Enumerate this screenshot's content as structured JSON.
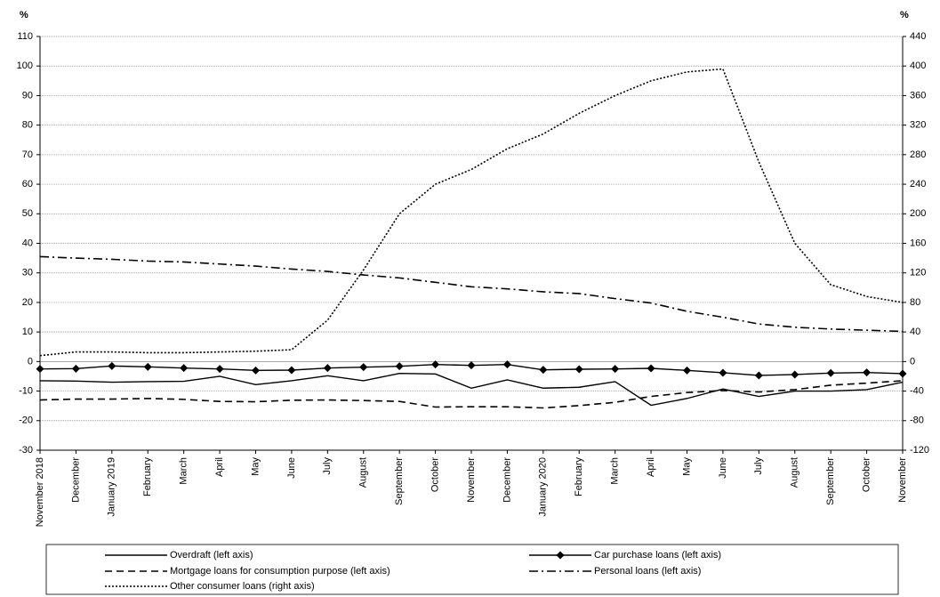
{
  "chart_data": {
    "type": "line",
    "y_label": "%",
    "y2_label": "%",
    "categories": [
      "November 2018",
      "December",
      "January 2019",
      "February",
      "March",
      "April",
      "May",
      "June",
      "July",
      "August",
      "September",
      "October",
      "November",
      "December",
      "January 2020",
      "February",
      "March",
      "April",
      "May",
      "June",
      "July",
      "August",
      "September",
      "October",
      "November"
    ],
    "ylim": [
      -30,
      110
    ],
    "yticks": [
      -30,
      -20,
      -10,
      0,
      10,
      20,
      30,
      40,
      50,
      60,
      70,
      80,
      90,
      100,
      110
    ],
    "y2lim": [
      -120,
      440
    ],
    "y2ticks": [
      -120,
      -80,
      -40,
      0,
      40,
      80,
      120,
      160,
      200,
      240,
      280,
      320,
      360,
      400,
      440
    ],
    "grid": true,
    "legend": "bottom",
    "series": [
      {
        "name": "Overdraft (left axis)",
        "color": "#000000",
        "style": "solid",
        "values": [
          -6.5,
          -6.6,
          -7,
          -6.8,
          -6.7,
          -5,
          -7.8,
          -6.5,
          -4.8,
          -6.5,
          -4,
          -4.2,
          -9,
          -6.2,
          -9,
          -8.7,
          -6.8,
          -14.8,
          -12.5,
          -9.3,
          -11.8,
          -10,
          -10,
          -9.5,
          -7
        ]
      },
      {
        "name": "Car purchase loans (left axis)",
        "color": "#000000",
        "style": "solid",
        "marker": "diamond",
        "values": [
          -2.5,
          -2.4,
          -1.5,
          -1.8,
          -2.2,
          -2.5,
          -3,
          -2.9,
          -2.2,
          -1.9,
          -1.6,
          -1,
          -1.3,
          -1,
          -2.8,
          -2.6,
          -2.5,
          -2.3,
          -3,
          -3.8,
          -4.7,
          -4.4,
          -3.9,
          -3.7,
          -4.1
        ]
      },
      {
        "name": "Mortgage loans for consumption purpose (left axis)",
        "color": "#000000",
        "style": "dashed",
        "values": [
          -13,
          -12.7,
          -12.7,
          -12.5,
          -12.8,
          -13.5,
          -13.6,
          -13.1,
          -13,
          -13.2,
          -13.5,
          -15.4,
          -15.3,
          -15.3,
          -15.7,
          -14.9,
          -13.8,
          -11.8,
          -10.5,
          -9.8,
          -10.3,
          -9.5,
          -8,
          -7.3,
          -6.5
        ]
      },
      {
        "name": "Personal loans (left axis)",
        "color": "#000000",
        "style": "dashdot",
        "values": [
          35.5,
          35,
          34.6,
          34,
          33.7,
          33,
          32.3,
          31.3,
          30.5,
          29.3,
          28.3,
          26.8,
          25.3,
          24.6,
          23.6,
          23,
          21.3,
          19.8,
          17,
          15,
          12.7,
          11.6,
          11,
          10.6,
          10.2
        ]
      },
      {
        "name": "Other consumer loans (right axis)",
        "color": "#000000",
        "style": "dotted",
        "axis": "y2",
        "values": [
          8,
          13,
          13,
          12,
          12,
          13,
          14,
          16,
          56,
          124,
          200,
          240,
          260,
          288,
          308,
          336,
          360,
          380,
          392,
          396,
          270,
          160,
          104,
          88,
          80
        ]
      }
    ]
  }
}
